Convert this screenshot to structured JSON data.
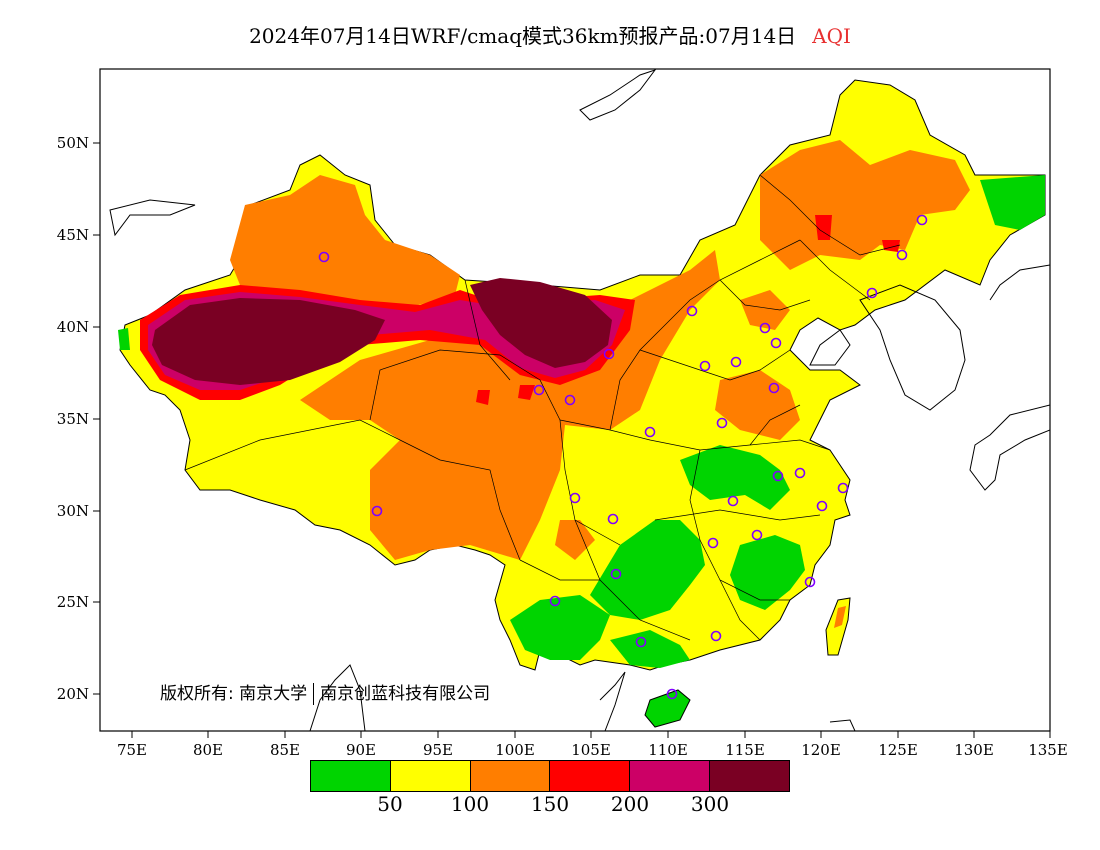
{
  "title": {
    "main": "2024年07月14日WRF/cmaq模式36km预报产品:07月14日",
    "variable": "AQI",
    "variable_color": "#e83030"
  },
  "axes": {
    "y_ticks": [
      "50N",
      "45N",
      "40N",
      "35N",
      "30N",
      "25N",
      "20N"
    ],
    "x_ticks": [
      "75E",
      "80E",
      "85E",
      "90E",
      "95E",
      "100E",
      "105E",
      "110E",
      "115E",
      "120E",
      "125E",
      "130E",
      "135E"
    ]
  },
  "copyright": {
    "left": "版权所有: 南京大学",
    "right": "南京创蓝科技有限公司"
  },
  "legend": {
    "colors": [
      "#00d400",
      "#ffff00",
      "#ff7e00",
      "#ff0000",
      "#cc0066",
      "#7a0023"
    ],
    "labels": [
      "50",
      "100",
      "150",
      "200",
      "300"
    ]
  }
}
